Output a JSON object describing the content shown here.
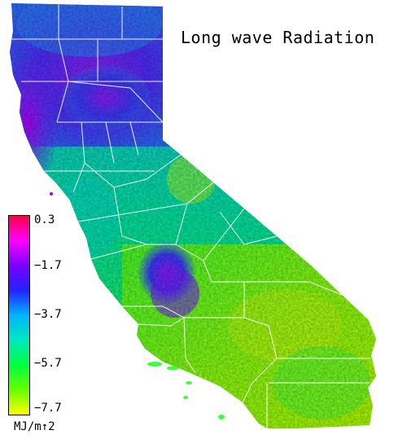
{
  "map": {
    "title": "Long wave Radiation",
    "units": "MJ/m↑2",
    "legend": {
      "ticks": [
        "0.3",
        "−1.7",
        "−3.7",
        "−5.7",
        "−7.7"
      ],
      "min": -7.7,
      "max": 0.3,
      "colors": [
        "#ff0044",
        "#ff00ff",
        "#7a00ff",
        "#2222ff",
        "#00b4ff",
        "#00e8c0",
        "#00ff40",
        "#66ff00",
        "#ffff00"
      ]
    },
    "region": "California"
  }
}
